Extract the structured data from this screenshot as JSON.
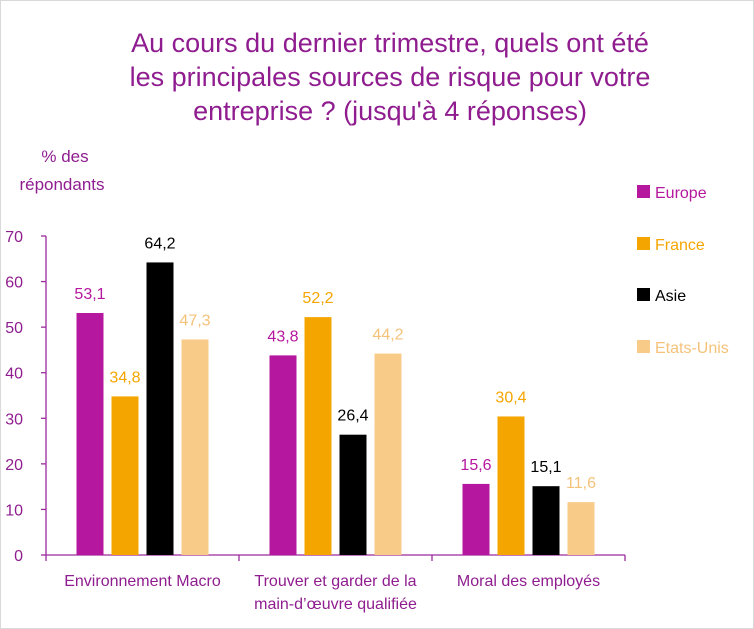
{
  "chart_data": {
    "type": "bar",
    "title": [
      "Au cours du dernier trimestre, quels ont été",
      "les principales sources de risque pour votre",
      "entreprise ? (jusqu'à 4 réponses)"
    ],
    "ylabel": [
      "% des",
      "répondants"
    ],
    "xlabel": "",
    "ylim": [
      0,
      70
    ],
    "yticks": [
      0,
      10,
      20,
      30,
      40,
      50,
      60,
      70
    ],
    "categories": [
      [
        "Environnement Macro"
      ],
      [
        "Trouver et garder de la",
        "main-d’œuvre qualifiée"
      ],
      [
        "Moral des employés"
      ]
    ],
    "series": [
      {
        "name": "Europe",
        "color": "#b5179e",
        "label_color": "#b5179e",
        "values": [
          53.1,
          43.8,
          15.6
        ],
        "labels": [
          "53,1",
          "43,8",
          "15,6"
        ]
      },
      {
        "name": "France",
        "color": "#f5a500",
        "label_color": "#f5a500",
        "values": [
          34.8,
          52.2,
          30.4
        ],
        "labels": [
          "34,8",
          "52,2",
          "30,4"
        ]
      },
      {
        "name": "Asie",
        "color": "#000000",
        "label_color": "#000000",
        "values": [
          64.2,
          26.4,
          15.1
        ],
        "labels": [
          "64,2",
          "26,4",
          "15,1"
        ]
      },
      {
        "name": "Etats-Unis",
        "color": "#f8cb88",
        "label_color": "#f5c27a",
        "values": [
          47.3,
          44.2,
          11.6
        ],
        "labels": [
          "47,3",
          "44,2",
          "11,6"
        ]
      }
    ],
    "legend_position": "right",
    "grid": false,
    "axis_color": "#9c2a9c"
  }
}
